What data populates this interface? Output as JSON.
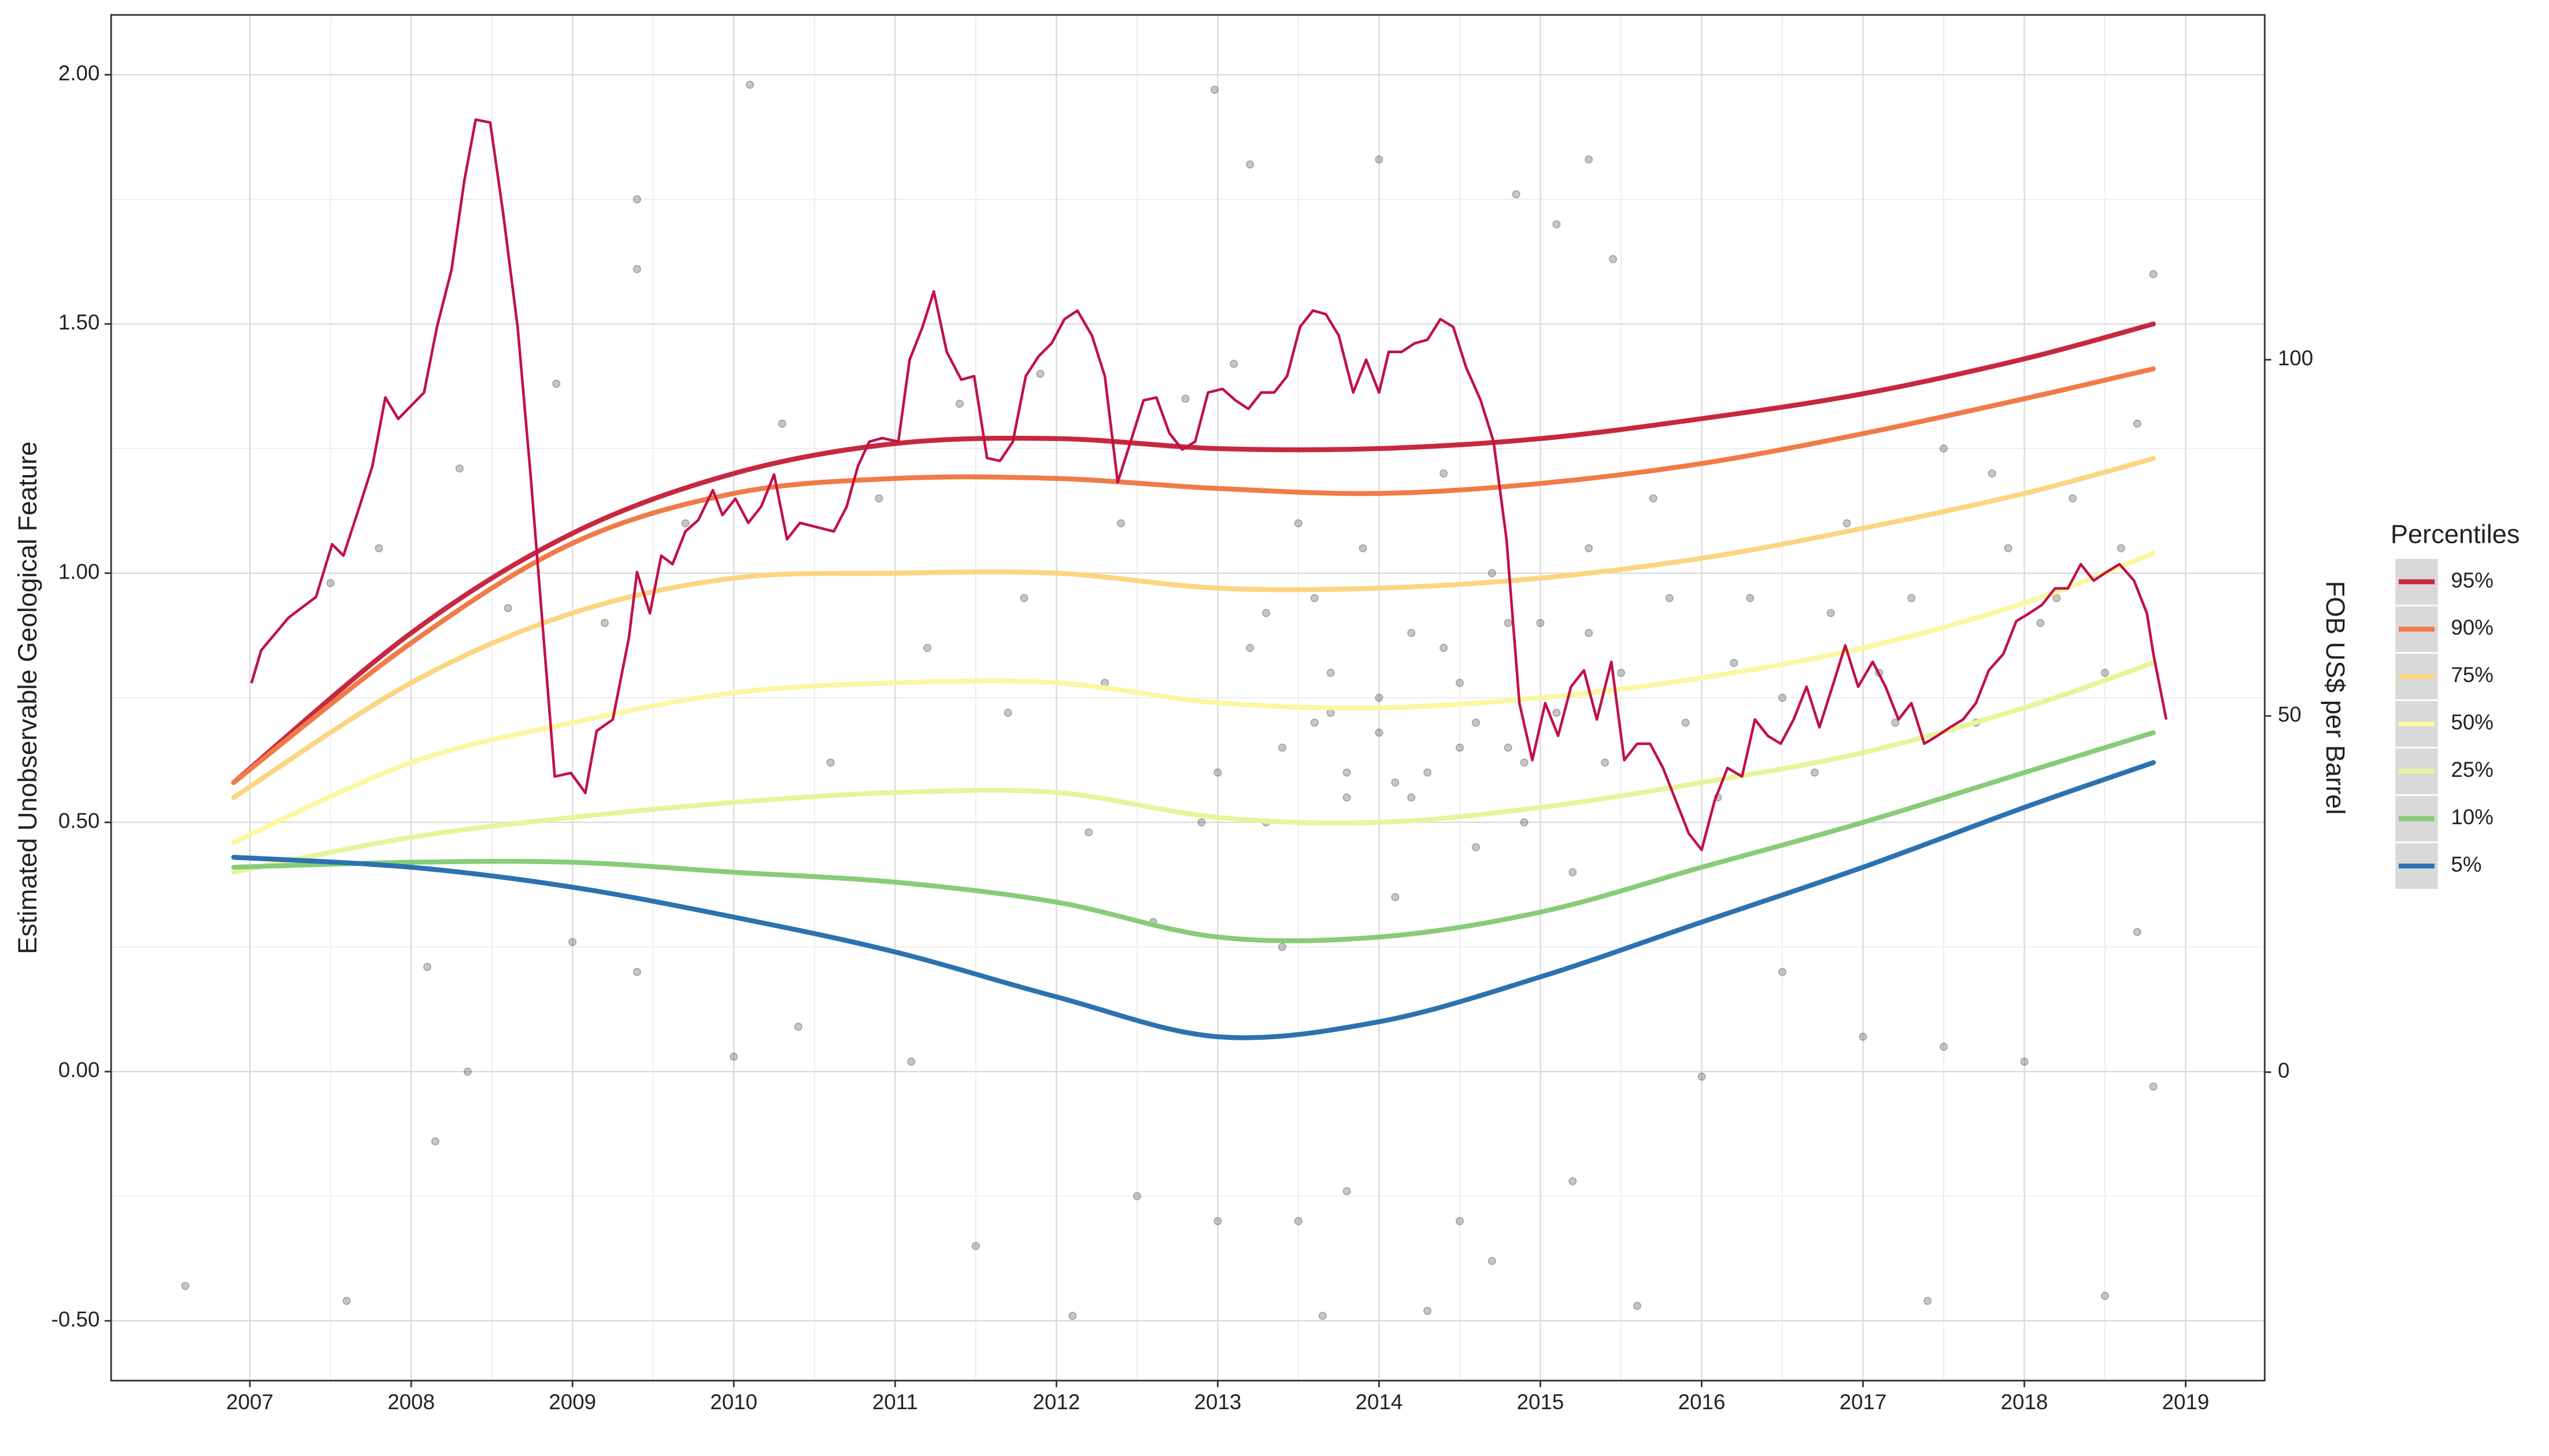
{
  "chart_data": {
    "type": "line",
    "y_label": "Estimated Unobservable Geological Feature",
    "y2_label": "FOB US$ per Barrel",
    "legend_title": "Percentiles",
    "legend": "right",
    "grid": true,
    "xlim": [
      2006.14,
      2019.49
    ],
    "ylim": [
      -0.62,
      2.12
    ],
    "y2lim": [
      -43.3,
      148.4
    ],
    "xticks": [
      2007,
      2008,
      2009,
      2010,
      2011,
      2012,
      2013,
      2014,
      2015,
      2016,
      2017,
      2018,
      2019
    ],
    "yticks": [
      {
        "value": -0.5,
        "label": "-0.50"
      },
      {
        "value": 0,
        "label": "0.00"
      },
      {
        "value": 0.5,
        "label": "0.50"
      },
      {
        "value": 1,
        "label": "1.00"
      },
      {
        "value": 1.5,
        "label": "1.50"
      },
      {
        "value": 2,
        "label": "2.00"
      }
    ],
    "y2ticks": [
      0,
      50,
      100
    ],
    "x": [
      2006.9,
      2008,
      2009,
      2010,
      2011,
      2012,
      2013,
      2014,
      2015,
      2016,
      2017,
      2018,
      2018.8
    ],
    "series": [
      {
        "name": "95%",
        "color": "#c7283f",
        "values": [
          0.58,
          0.88,
          1.08,
          1.2,
          1.26,
          1.27,
          1.25,
          1.25,
          1.27,
          1.31,
          1.36,
          1.43,
          1.5
        ]
      },
      {
        "name": "90%",
        "color": "#f07b48",
        "values": [
          0.58,
          0.86,
          1.06,
          1.16,
          1.19,
          1.19,
          1.17,
          1.16,
          1.18,
          1.22,
          1.28,
          1.35,
          1.41
        ]
      },
      {
        "name": "75%",
        "color": "#fdd480",
        "values": [
          0.55,
          0.78,
          0.92,
          0.99,
          1.0,
          1.0,
          0.97,
          0.97,
          0.99,
          1.03,
          1.09,
          1.16,
          1.23
        ]
      },
      {
        "name": "50%",
        "color": "#fbf7a2",
        "values": [
          0.46,
          0.62,
          0.7,
          0.76,
          0.78,
          0.78,
          0.74,
          0.73,
          0.75,
          0.79,
          0.85,
          0.94,
          1.04
        ]
      },
      {
        "name": "25%",
        "color": "#e6f59a",
        "values": [
          0.4,
          0.47,
          0.51,
          0.54,
          0.56,
          0.56,
          0.51,
          0.5,
          0.53,
          0.58,
          0.64,
          0.73,
          0.82
        ]
      },
      {
        "name": "10%",
        "color": "#88cc7a",
        "values": [
          0.41,
          0.42,
          0.42,
          0.4,
          0.38,
          0.34,
          0.27,
          0.27,
          0.32,
          0.41,
          0.5,
          0.6,
          0.68
        ]
      },
      {
        "name": "5%",
        "color": "#2c72b0",
        "values": [
          0.43,
          0.41,
          0.37,
          0.31,
          0.24,
          0.15,
          0.07,
          0.1,
          0.19,
          0.3,
          0.41,
          0.53,
          0.62
        ]
      }
    ],
    "price_line": {
      "axis": "y2",
      "color": "#c0104a",
      "x": [
        2007.01,
        2007.07,
        2007.24,
        2007.41,
        2007.51,
        2007.58,
        2007.68,
        2007.76,
        2007.84,
        2007.92,
        2008.08,
        2008.16,
        2008.25,
        2008.33,
        2008.4,
        2008.49,
        2008.57,
        2008.66,
        2008.74,
        2008.89,
        2008.99,
        2009.08,
        2009.15,
        2009.25,
        2009.35,
        2009.4,
        2009.48,
        2009.55,
        2009.62,
        2009.7,
        2009.78,
        2009.87,
        2009.93,
        2010.01,
        2010.09,
        2010.17,
        2010.25,
        2010.33,
        2010.41,
        2010.62,
        2010.7,
        2010.77,
        2010.84,
        2010.92,
        2011.02,
        2011.09,
        2011.17,
        2011.24,
        2011.32,
        2011.41,
        2011.49,
        2011.57,
        2011.65,
        2011.73,
        2011.81,
        2011.89,
        2011.97,
        2012.05,
        2012.13,
        2012.22,
        2012.3,
        2012.38,
        2012.46,
        2012.54,
        2012.62,
        2012.7,
        2012.78,
        2012.86,
        2012.94,
        2013.03,
        2013.11,
        2013.19,
        2013.27,
        2013.35,
        2013.43,
        2013.51,
        2013.59,
        2013.67,
        2013.75,
        2013.84,
        2013.92,
        2014.0,
        2014.06,
        2014.14,
        2014.22,
        2014.3,
        2014.38,
        2014.46,
        2014.54,
        2014.63,
        2014.71,
        2014.79,
        2014.87,
        2014.95,
        2015.03,
        2015.11,
        2015.19,
        2015.27,
        2015.35,
        2015.44,
        2015.52,
        2015.6,
        2015.68,
        2015.76,
        2015.84,
        2015.92,
        2016.0,
        2016.08,
        2016.16,
        2016.25,
        2016.33,
        2016.41,
        2016.49,
        2016.57,
        2016.65,
        2016.73,
        2016.81,
        2016.89,
        2016.97,
        2017.06,
        2017.14,
        2017.22,
        2017.3,
        2017.38,
        2017.46,
        2017.54,
        2017.62,
        2017.7,
        2017.78,
        2017.87,
        2017.95,
        2018.03,
        2018.11,
        2018.19,
        2018.27,
        2018.35,
        2018.43,
        2018.51,
        2018.59,
        2018.68,
        2018.76,
        2018.8,
        2018.88
      ],
      "values": [
        54.6,
        59.2,
        63.8,
        66.7,
        74.1,
        72.5,
        79.4,
        85.1,
        94.7,
        91.7,
        95.4,
        104.6,
        112.6,
        125.2,
        133.7,
        133.3,
        120.6,
        104.6,
        83.9,
        41.5,
        42.0,
        39.2,
        47.9,
        49.5,
        61.0,
        70.2,
        64.4,
        72.5,
        71.3,
        75.9,
        77.5,
        81.7,
        78.2,
        80.5,
        77.1,
        79.4,
        83.9,
        74.8,
        77.1,
        75.9,
        79.4,
        85.1,
        88.5,
        89.0,
        88.5,
        100,
        104.6,
        109.6,
        101.1,
        97.2,
        97.7,
        86.2,
        85.8,
        88.5,
        97.7,
        100.5,
        102.3,
        105.7,
        106.9,
        103.4,
        97.7,
        82.8,
        88.5,
        94.3,
        94.7,
        89.7,
        87.4,
        88.5,
        95.4,
        95.9,
        94.3,
        93.1,
        95.4,
        95.4,
        97.7,
        104.6,
        106.9,
        106.4,
        103.4,
        95.4,
        100,
        95.4,
        101.1,
        101.1,
        102.3,
        102.8,
        105.7,
        104.6,
        98.9,
        94.3,
        88.5,
        74.8,
        51.8,
        43.8,
        51.8,
        47.2,
        54.1,
        56.4,
        49.5,
        57.6,
        43.8,
        46.1,
        46.1,
        42.7,
        38.1,
        33.5,
        31.2,
        38.1,
        42.7,
        41.5,
        49.5,
        47.2,
        46.1,
        49.5,
        54.1,
        48.4,
        54.1,
        59.9,
        54.1,
        57.6,
        54.1,
        49.5,
        51.8,
        46.1,
        47.2,
        48.4,
        49.5,
        51.8,
        56.4,
        58.7,
        63.3,
        64.4,
        65.6,
        67.9,
        67.9,
        71.3,
        69.0,
        70.2,
        71.3,
        69.0,
        64.4,
        58.7,
        49.5
      ]
    },
    "points": {
      "color": "#333333",
      "x": [
        2010.1,
        2012.98,
        2013.2,
        2014.0,
        2014.85,
        2015.1,
        2015.3,
        2015.45,
        2009.4,
        2009.4,
        2008.3,
        2008.35,
        2008.15,
        2006.6,
        2007.6,
        2012.1,
        2013.65,
        2014.3,
        2015.6,
        2017.4,
        2018.5,
        2008.1,
        2009.0,
        2009.4,
        2010.0,
        2010.4,
        2011.1,
        2011.5,
        2012.5,
        2013.0,
        2013.5,
        2013.8,
        2014.5,
        2014.7,
        2015.2,
        2016.0,
        2016.5,
        2017.0,
        2017.5,
        2018.0,
        2018.7,
        2018.8,
        2007.5,
        2007.8,
        2008.6,
        2008.9,
        2009.2,
        2009.7,
        2010.3,
        2010.6,
        2010.9,
        2011.2,
        2011.4,
        2011.7,
        2011.9,
        2012.2,
        2012.4,
        2012.6,
        2012.8,
        2013.0,
        2013.1,
        2013.3,
        2013.4,
        2013.5,
        2013.6,
        2013.7,
        2013.8,
        2013.9,
        2014.0,
        2014.1,
        2014.2,
        2014.3,
        2014.4,
        2014.5,
        2014.6,
        2014.7,
        2014.8,
        2014.9,
        2015.0,
        2015.1,
        2015.2,
        2015.3,
        2015.4,
        2015.5,
        2015.7,
        2015.9,
        2016.1,
        2016.3,
        2016.5,
        2016.7,
        2016.9,
        2017.1,
        2017.3,
        2017.5,
        2017.7,
        2017.9,
        2018.1,
        2018.3,
        2018.5,
        2018.7,
        2018.8,
        2013.2,
        2013.4,
        2013.6,
        2013.8,
        2014.0,
        2014.2,
        2014.4,
        2014.6,
        2014.8,
        2013.3,
        2013.7,
        2014.1,
        2014.5,
        2014.9,
        2015.3,
        2015.8,
        2016.2,
        2016.8,
        2017.2,
        2017.8,
        2018.2,
        2018.6,
        2012.3,
        2011.8,
        2012.9
      ],
      "y": [
        1.98,
        1.97,
        1.82,
        1.83,
        1.76,
        1.7,
        1.83,
        1.63,
        1.75,
        1.61,
        1.21,
        0.0,
        -0.14,
        -0.43,
        -0.46,
        -0.49,
        -0.49,
        -0.48,
        -0.47,
        -0.46,
        -0.45,
        0.21,
        0.26,
        0.2,
        0.03,
        0.09,
        0.02,
        -0.35,
        -0.25,
        -0.3,
        -0.3,
        -0.24,
        -0.3,
        -0.38,
        -0.22,
        -0.01,
        0.2,
        0.07,
        0.05,
        0.02,
        0.28,
        -0.03,
        0.98,
        1.05,
        0.93,
        1.38,
        0.9,
        1.1,
        1.3,
        0.62,
        1.15,
        0.85,
        1.34,
        0.72,
        1.4,
        0.48,
        1.1,
        0.3,
        1.35,
        0.6,
        1.42,
        0.92,
        0.25,
        1.1,
        0.7,
        0.8,
        0.55,
        1.05,
        0.68,
        0.35,
        0.88,
        0.6,
        1.2,
        0.78,
        0.45,
        1.0,
        0.65,
        0.5,
        0.9,
        0.72,
        0.4,
        1.05,
        0.62,
        0.8,
        1.15,
        0.7,
        0.55,
        0.95,
        0.75,
        0.6,
        1.1,
        0.8,
        0.95,
        1.25,
        0.7,
        1.05,
        0.9,
        1.15,
        0.8,
        1.3,
        1.6,
        0.85,
        0.65,
        0.95,
        0.6,
        0.75,
        0.55,
        0.85,
        0.7,
        0.9,
        0.5,
        0.72,
        0.58,
        0.65,
        0.62,
        0.88,
        0.95,
        0.82,
        0.92,
        0.7,
        1.2,
        0.95,
        1.05,
        0.78,
        0.95,
        0.5
      ]
    }
  }
}
